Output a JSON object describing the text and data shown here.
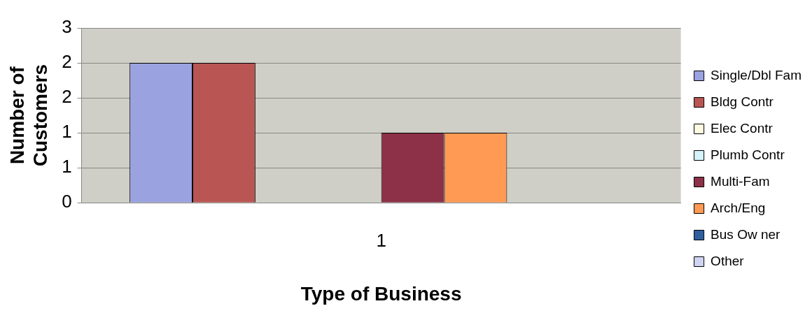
{
  "chart_data": {
    "type": "bar",
    "xlabel": "Type of Business",
    "ylabel": "Number of Customers",
    "categories": [
      "1"
    ],
    "series": [
      {
        "name": "Single/Dbl Fam",
        "color": "#9aa3e0",
        "values": [
          2
        ]
      },
      {
        "name": "Bldg Contr",
        "color": "#b95653",
        "values": [
          2
        ]
      },
      {
        "name": "Elec Contr",
        "color": "#fffbe0",
        "values": [
          0
        ]
      },
      {
        "name": "Plumb Contr",
        "color": "#d4f4fa",
        "values": [
          0
        ]
      },
      {
        "name": "Multi-Fam",
        "color": "#8c3148",
        "values": [
          1
        ]
      },
      {
        "name": "Arch/Eng",
        "color": "#ff9a55",
        "values": [
          1
        ]
      },
      {
        "name": "Bus Ow ner",
        "color": "#2f5f9f",
        "values": [
          0
        ]
      },
      {
        "name": "Other",
        "color": "#d0d4f2",
        "values": [
          0
        ]
      }
    ],
    "ylim": [
      0,
      2.5
    ],
    "yticks": [
      0,
      {
        "value": 0.5,
        "label": "1"
      },
      1,
      {
        "value": 1.5,
        "label": "2"
      },
      2,
      {
        "value": 2.5,
        "label": "3"
      }
    ],
    "grid": "y",
    "legend": "right"
  }
}
